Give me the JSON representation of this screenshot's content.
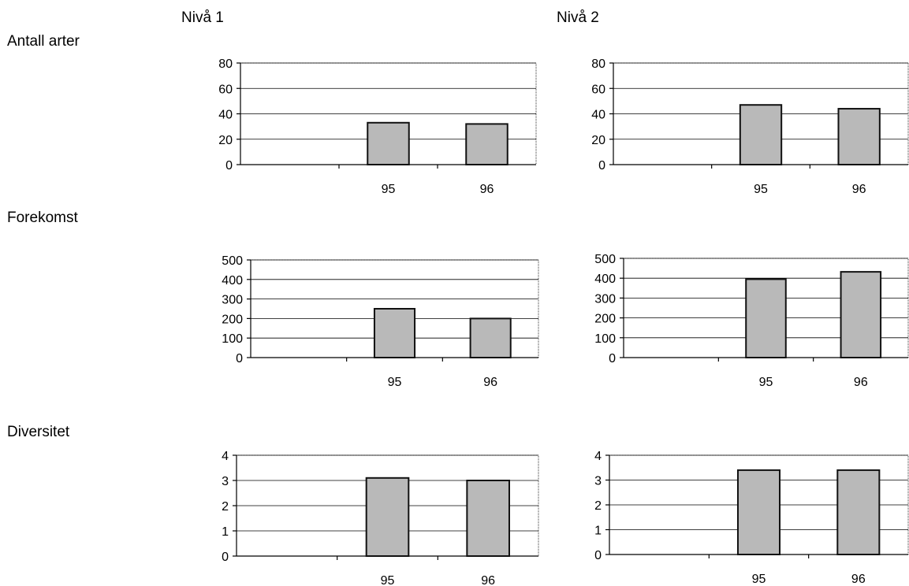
{
  "column_headers": [
    "Nivå 1",
    "Nivå 2"
  ],
  "row_labels": [
    "Antall arter",
    "Forekomst",
    "Diversitet"
  ],
  "colors": {
    "bar_fill": "#b9b9b9",
    "bar_stroke": "#111111",
    "grid": "#000000"
  },
  "chart_data": [
    {
      "type": "bar",
      "panel": "Antall arter / Nivå 1",
      "categories": [
        "",
        "95",
        "96"
      ],
      "values": [
        null,
        33,
        32
      ],
      "ylim": [
        0,
        80
      ],
      "yticks": [
        "0",
        "20",
        "40",
        "60",
        "80"
      ],
      "grid": true,
      "title": "",
      "xlabel": "",
      "ylabel": ""
    },
    {
      "type": "bar",
      "panel": "Antall arter / Nivå 2",
      "categories": [
        "",
        "95",
        "96"
      ],
      "values": [
        null,
        47,
        44
      ],
      "ylim": [
        0,
        80
      ],
      "yticks": [
        "0",
        "20",
        "40",
        "60",
        "80"
      ],
      "grid": true,
      "title": "",
      "xlabel": "",
      "ylabel": ""
    },
    {
      "type": "bar",
      "panel": "Forekomst / Nivå 1",
      "categories": [
        "",
        "95",
        "96"
      ],
      "values": [
        null,
        250,
        200
      ],
      "ylim": [
        0,
        500
      ],
      "yticks": [
        "0",
        "100",
        "200",
        "300",
        "400",
        "500"
      ],
      "grid": true,
      "title": "",
      "xlabel": "",
      "ylabel": ""
    },
    {
      "type": "bar",
      "panel": "Forekomst / Nivå 2",
      "categories": [
        "",
        "95",
        "96"
      ],
      "values": [
        null,
        395,
        432
      ],
      "ylim": [
        0,
        500
      ],
      "yticks": [
        "0",
        "100",
        "200",
        "300",
        "400",
        "500"
      ],
      "grid": true,
      "title": "",
      "xlabel": "",
      "ylabel": ""
    },
    {
      "type": "bar",
      "panel": "Diversitet / Nivå 1",
      "categories": [
        "",
        "95",
        "96"
      ],
      "values": [
        null,
        3.1,
        3.0
      ],
      "ylim": [
        0,
        4
      ],
      "yticks": [
        "0",
        "1",
        "2",
        "3",
        "4"
      ],
      "grid": true,
      "title": "",
      "xlabel": "",
      "ylabel": ""
    },
    {
      "type": "bar",
      "panel": "Diversitet / Nivå 2",
      "categories": [
        "",
        "95",
        "96"
      ],
      "values": [
        null,
        3.4,
        3.4
      ],
      "ylim": [
        0,
        4
      ],
      "yticks": [
        "0",
        "1",
        "2",
        "3",
        "4"
      ],
      "grid": true,
      "title": "",
      "xlabel": "",
      "ylabel": ""
    }
  ]
}
